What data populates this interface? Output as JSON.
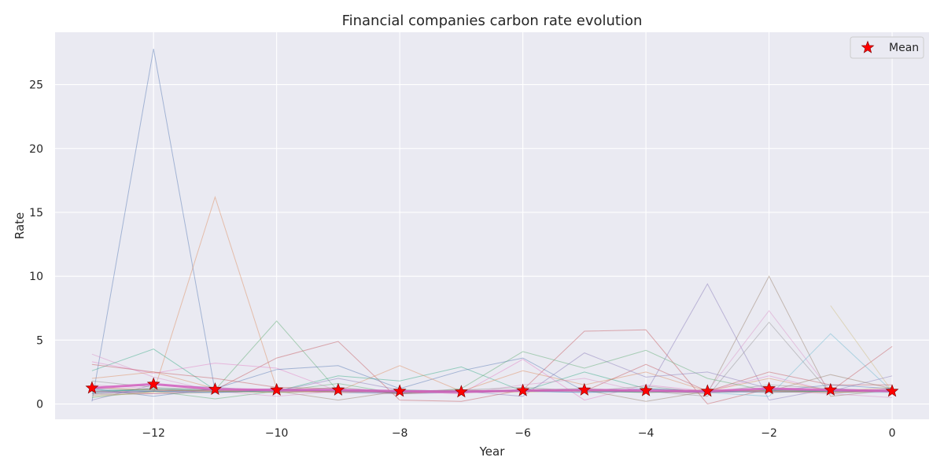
{
  "chart_data": {
    "type": "line",
    "title": "Financial companies carbon rate evolution",
    "xlabel": "Year",
    "ylabel": "Rate",
    "xlim": [
      -13.6,
      0.6
    ],
    "ylim": [
      -1.2,
      29.1
    ],
    "x_ticks": [
      -12,
      -10,
      -8,
      -6,
      -4,
      -2,
      0
    ],
    "x_tick_labels": [
      "−12",
      "−10",
      "−8",
      "−6",
      "−4",
      "−2",
      "0"
    ],
    "y_ticks": [
      0,
      5,
      10,
      15,
      20,
      25
    ],
    "y_tick_labels": [
      "0",
      "5",
      "10",
      "15",
      "20",
      "25"
    ],
    "grid": true,
    "legend": {
      "position": "top-right",
      "entries": [
        "Mean"
      ]
    },
    "x": [
      -13,
      -12,
      -11,
      -10,
      -9,
      -8,
      -7,
      -6,
      -5,
      -4,
      -3,
      -2,
      -1,
      0
    ],
    "mean": {
      "name": "Mean",
      "color": "#ff0000",
      "marker": "star",
      "values": [
        1.25,
        1.55,
        1.15,
        1.1,
        1.1,
        1.0,
        0.95,
        1.05,
        1.1,
        1.05,
        1.0,
        1.2,
        1.1,
        1.0
      ]
    },
    "series_colors": [
      "#4c72b0",
      "#dd8452",
      "#55a868",
      "#c44e52",
      "#8172b3",
      "#937860",
      "#da8bc3",
      "#8c8c8c",
      "#ccb974",
      "#64b5cd",
      "#2ca87f",
      "#e377c2"
    ],
    "series": [
      {
        "values": [
          0.2,
          27.8,
          1.0,
          1.2,
          0.9,
          0.8,
          0.9,
          1.0,
          1.1,
          1.0,
          0.9,
          1.0,
          1.0,
          1.0
        ]
      },
      {
        "values": [
          0.8,
          0.9,
          16.2,
          1.2,
          1.0,
          0.9,
          1.0,
          1.1,
          1.0,
          0.9,
          1.0,
          1.1,
          0.9,
          1.0
        ]
      },
      {
        "values": [
          1.0,
          1.2,
          1.1,
          6.5,
          1.0,
          0.9,
          1.0,
          1.1,
          1.2,
          1.0,
          0.9,
          1.0,
          1.1,
          1.0
        ]
      },
      {
        "values": [
          1.0,
          1.0,
          1.1,
          3.6,
          4.9,
          0.3,
          0.2,
          1.1,
          5.7,
          5.8,
          0.0,
          1.2,
          1.0,
          4.5
        ]
      },
      {
        "values": [
          0.9,
          1.0,
          1.0,
          1.1,
          1.0,
          0.9,
          1.0,
          1.0,
          1.1,
          0.9,
          9.4,
          0.3,
          1.2,
          1.0
        ]
      },
      {
        "values": [
          1.0,
          1.1,
          1.0,
          1.0,
          0.9,
          1.0,
          1.1,
          1.0,
          1.0,
          1.0,
          0.8,
          10.0,
          0.6,
          1.1
        ]
      },
      {
        "values": [
          3.9,
          2.1,
          1.0,
          1.2,
          1.0,
          0.8,
          1.0,
          1.0,
          1.1,
          1.0,
          1.0,
          7.3,
          1.0,
          1.0
        ]
      },
      {
        "values": [
          1.2,
          1.1,
          1.0,
          1.0,
          1.1,
          1.0,
          0.9,
          1.0,
          1.1,
          1.0,
          0.6,
          6.4,
          0.8,
          1.2
        ]
      },
      {
        "values": [
          null,
          null,
          null,
          null,
          null,
          null,
          null,
          null,
          null,
          null,
          null,
          null,
          7.7,
          1.0
        ]
      },
      {
        "values": [
          1.0,
          1.1,
          1.0,
          1.0,
          1.0,
          1.0,
          0.9,
          1.0,
          1.1,
          1.0,
          0.9,
          0.6,
          5.5,
          1.0
        ]
      },
      {
        "values": [
          2.6,
          4.3,
          1.1,
          1.0,
          2.2,
          1.8,
          2.9,
          1.0,
          2.5,
          1.2,
          1.0,
          1.0,
          1.0,
          1.1
        ]
      },
      {
        "values": [
          3.3,
          2.4,
          3.2,
          2.8,
          1.0,
          1.0,
          0.8,
          3.5,
          0.3,
          1.5,
          1.0,
          2.2,
          1.0,
          1.2
        ]
      },
      {
        "values": [
          1.2,
          0.6,
          1.2,
          2.7,
          3.0,
          1.2,
          2.6,
          3.6,
          1.0,
          1.2,
          1.0,
          1.0,
          1.5,
          1.2
        ]
      },
      {
        "values": [
          2.0,
          2.5,
          1.2,
          1.0,
          1.0,
          3.0,
          1.0,
          2.6,
          1.5,
          2.5,
          1.0,
          2.0,
          1.0,
          1.1
        ]
      },
      {
        "values": [
          0.5,
          1.0,
          0.4,
          1.0,
          1.6,
          0.8,
          1.2,
          4.1,
          2.8,
          4.2,
          2.0,
          1.0,
          1.0,
          1.0
        ]
      },
      {
        "values": [
          3.1,
          2.5,
          2.0,
          1.3,
          1.2,
          0.8,
          1.0,
          1.1,
          1.0,
          3.1,
          1.0,
          2.5,
          1.5,
          1.5
        ]
      },
      {
        "values": [
          0.3,
          1.5,
          1.3,
          1.0,
          2.0,
          1.1,
          1.0,
          0.6,
          4.0,
          2.1,
          2.5,
          1.2,
          1.0,
          2.2
        ]
      },
      {
        "values": [
          0.7,
          0.8,
          0.9,
          1.0,
          0.3,
          1.0,
          1.0,
          1.0,
          1.1,
          0.2,
          1.0,
          1.0,
          2.3,
          1.2
        ]
      },
      {
        "values": [
          1.5,
          1.2,
          1.0,
          0.6,
          1.0,
          1.0,
          0.8,
          1.5,
          2.0,
          0.9,
          1.0,
          1.0,
          0.8,
          0.5
        ]
      },
      {
        "values": [
          1.8,
          1.3,
          1.1,
          1.0,
          1.3,
          0.9,
          1.1,
          1.3,
          1.0,
          1.4,
          0.9,
          1.5,
          1.2,
          1.0
        ]
      },
      {
        "values": [
          0.6,
          0.9,
          1.0,
          1.1,
          0.9,
          1.0,
          1.0,
          0.9,
          1.1,
          1.0,
          1.1,
          0.9,
          1.0,
          1.3
        ]
      },
      {
        "values": [
          1.1,
          1.0,
          0.9,
          1.0,
          1.1,
          1.0,
          0.9,
          1.0,
          0.9,
          1.1,
          1.0,
          1.0,
          0.9,
          0.9
        ]
      },
      {
        "values": [
          0.9,
          1.2,
          1.0,
          0.9,
          1.0,
          1.1,
          1.0,
          1.1,
          1.0,
          0.9,
          1.0,
          1.1,
          1.0,
          1.0
        ]
      },
      {
        "values": [
          1.0,
          0.8,
          1.1,
          1.0,
          0.9,
          1.0,
          1.1,
          1.0,
          1.0,
          1.0,
          0.9,
          1.0,
          1.1,
          1.1
        ]
      },
      {
        "values": [
          0.8,
          1.0,
          0.9,
          1.1,
          1.0,
          0.9,
          1.0,
          1.0,
          0.9,
          1.0,
          1.0,
          0.9,
          1.0,
          1.0
        ]
      },
      {
        "values": [
          1.3,
          1.1,
          1.0,
          0.9,
          1.0,
          1.0,
          0.9,
          1.0,
          1.1,
          1.0,
          1.1,
          1.0,
          0.9,
          1.0
        ]
      }
    ]
  }
}
